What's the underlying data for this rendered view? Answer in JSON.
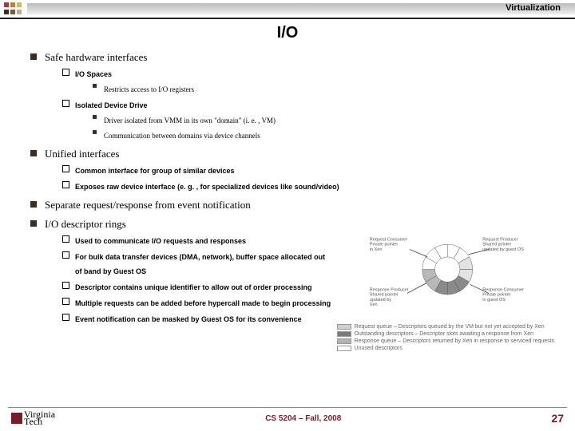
{
  "header": {
    "label": "Virtualization"
  },
  "title": {
    "text": "I/O",
    "fontsize": 20
  },
  "fonts": {
    "body_size": 11,
    "sub_size": 9,
    "serif": "Georgia, 'Times New Roman', serif"
  },
  "colors": {
    "bullet_l1": "#3b2e22",
    "accent": "#7a1d2b",
    "topstrip_a": "#bbbbbb",
    "topstrip_b": "#eeeeee",
    "squares": [
      "#a63a3a",
      "#c97b36",
      "#d6b85a",
      "#3b2e22",
      "#7a5c3a",
      "#bfae8f"
    ]
  },
  "bullets": [
    {
      "text": "Safe hardware interfaces",
      "children": [
        {
          "text": "I/O Spaces",
          "children": [
            {
              "text": "Restricts access to I/O registers"
            }
          ]
        },
        {
          "text": "Isolated Device Drive",
          "children": [
            {
              "text": "Driver isolated from VMM in its own \"domain\" (i. e. , VM)"
            },
            {
              "text": "Communication between domains via device channels"
            }
          ]
        }
      ]
    },
    {
      "text": "Unified interfaces",
      "children": [
        {
          "text": "Common interface for group of similar devices"
        },
        {
          "text": "Exposes raw device interface (e. g. , for specialized devices like sound/video)"
        }
      ]
    },
    {
      "text": "Separate request/response from event notification"
    },
    {
      "text": "I/O descriptor rings",
      "children": [
        {
          "text": "Used to communicate I/O requests and responses"
        },
        {
          "text": "For bulk data transfer devices (DMA, network), buffer space allocated out of band by Guest OS"
        },
        {
          "text": "Descriptor contains unique identifier to allow out of order processing"
        },
        {
          "text": "Multiple requests can be added before hypercall made to begin processing"
        },
        {
          "text": "Event notification can be masked by Guest OS for its convenience"
        }
      ]
    }
  ],
  "ring": {
    "labels": {
      "tl": "Request Consumer\nPrivate pointer\nin Xen",
      "tr": "Request Producer\nShared pointer\nupdated by guest OS",
      "bl": "Response Producer\nShared pointer\nupdated by\nXen",
      "br": "Response Consumer\nPrivate pointer\nin guest OS"
    },
    "legend": [
      {
        "color": "#cfcfcf",
        "text": "Request queue – Descriptors queued by the VM but not yet accepted by Xen"
      },
      {
        "color": "#7a7a7a",
        "text": "Outstanding descriptors – Descriptor slots awaiting a response from Xen"
      },
      {
        "color": "#b3b3b3",
        "text": "Response queue – Descriptors returned by Xen in response to serviced requests"
      },
      {
        "color": "#ffffff",
        "text": "Unused descriptors"
      }
    ],
    "slice_colors": [
      "#ffffff",
      "#ffffff",
      "#e3e3e3",
      "#e3e3e3",
      "#8a8a8a",
      "#8a8a8a",
      "#8a8a8a",
      "#b8b8b8",
      "#b8b8b8",
      "#ffffff",
      "#ffffff",
      "#ffffff"
    ]
  },
  "footer": {
    "center": "CS 5204 – Fall, 2008",
    "page": "27",
    "logo_top": "Virginia",
    "logo_bot": "Tech"
  }
}
